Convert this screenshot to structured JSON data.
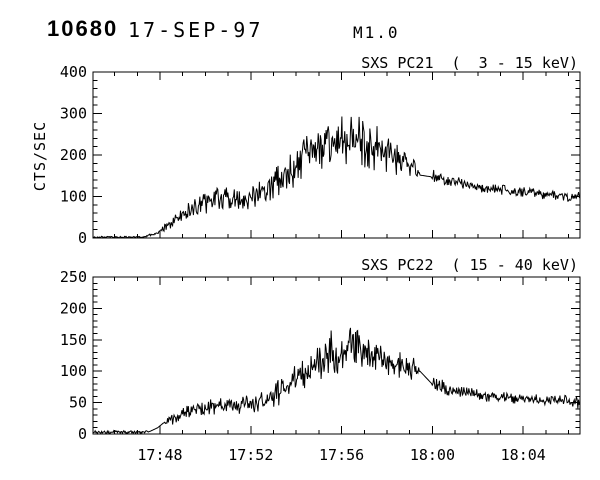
{
  "header": {
    "flare_number": "10680",
    "date": "17-SEP-97",
    "goes_class": "M1.0"
  },
  "colors": {
    "foreground": "#000000",
    "background": "#ffffff"
  },
  "chart_data": {
    "type": "line",
    "description": "Two stacked solar flare X-ray light curves (counts/sec vs time UT)",
    "x_axis": {
      "domain_minutes_after_1700": [
        45.05,
        66.5
      ],
      "minor_step": 1,
      "major_ticks": [
        {
          "t": 48,
          "label": "17:48"
        },
        {
          "t": 52,
          "label": "17:52"
        },
        {
          "t": 56,
          "label": "17:56"
        },
        {
          "t": 60,
          "label": "18:00"
        },
        {
          "t": 64,
          "label": "18:04"
        }
      ]
    },
    "panels": [
      {
        "id": "pc21",
        "title": "SXS PC21  (  3 - 15 keV)",
        "ylabel": "CTS/SEC",
        "ylim": [
          0,
          400
        ],
        "ytick_step": 100,
        "yminor_step": 20,
        "ytick_labels": [
          "0",
          "100",
          "200",
          "300",
          "400"
        ],
        "samples": 680,
        "seed": 3,
        "envelope": [
          [
            45.05,
            2
          ],
          [
            46.8,
            2
          ],
          [
            47.3,
            3
          ],
          [
            48.0,
            14
          ],
          [
            48.6,
            40
          ],
          [
            49.3,
            68
          ],
          [
            50.0,
            85
          ],
          [
            50.7,
            97
          ],
          [
            51.4,
            92
          ],
          [
            52.2,
            103
          ],
          [
            53.0,
            130
          ],
          [
            53.8,
            165
          ],
          [
            54.6,
            200
          ],
          [
            55.3,
            228
          ],
          [
            56.0,
            242
          ],
          [
            56.8,
            235
          ],
          [
            57.6,
            220
          ],
          [
            58.4,
            200
          ],
          [
            59.0,
            180
          ],
          [
            59.4,
            152
          ],
          [
            60.0,
            147
          ],
          [
            60.6,
            140
          ],
          [
            61.5,
            128
          ],
          [
            62.5,
            118
          ],
          [
            63.5,
            112
          ],
          [
            64.5,
            108
          ],
          [
            65.5,
            103
          ],
          [
            66.1,
            97
          ],
          [
            66.5,
            102
          ]
        ],
        "noise": [
          [
            45.05,
            1.5
          ],
          [
            47.0,
            1.5
          ],
          [
            47.6,
            2
          ],
          [
            48.2,
            8
          ],
          [
            49.0,
            14
          ],
          [
            50.0,
            18
          ],
          [
            51.0,
            18
          ],
          [
            52.0,
            20
          ],
          [
            53.0,
            26
          ],
          [
            54.0,
            32
          ],
          [
            55.0,
            40
          ],
          [
            56.0,
            45
          ],
          [
            57.0,
            42
          ],
          [
            58.0,
            38
          ],
          [
            59.0,
            30
          ],
          [
            59.35,
            25
          ],
          [
            59.45,
            0
          ],
          [
            59.95,
            0
          ],
          [
            60.05,
            14
          ],
          [
            60.6,
            12
          ],
          [
            61.5,
            9
          ],
          [
            66.5,
            8
          ]
        ]
      },
      {
        "id": "pc22",
        "title": "SXS PC22  ( 15 - 40 keV)",
        "ylabel": "",
        "ylim": [
          0,
          250
        ],
        "ytick_step": 50,
        "yminor_step": 10,
        "ytick_labels": [
          "0",
          "50",
          "100",
          "150",
          "200",
          "250"
        ],
        "samples": 680,
        "seed": 11,
        "envelope": [
          [
            45.05,
            3
          ],
          [
            47.0,
            2.5
          ],
          [
            47.55,
            4
          ],
          [
            47.9,
            10
          ],
          [
            48.2,
            19
          ],
          [
            49.0,
            32
          ],
          [
            49.8,
            42
          ],
          [
            50.5,
            47
          ],
          [
            51.3,
            44
          ],
          [
            52.0,
            48
          ],
          [
            53.0,
            60
          ],
          [
            54.0,
            88
          ],
          [
            55.0,
            115
          ],
          [
            55.7,
            133
          ],
          [
            56.4,
            138
          ],
          [
            57.1,
            128
          ],
          [
            57.9,
            118
          ],
          [
            58.7,
            110
          ],
          [
            59.4,
            102
          ],
          [
            60.0,
            79
          ],
          [
            60.7,
            72
          ],
          [
            61.7,
            64
          ],
          [
            62.7,
            59
          ],
          [
            63.7,
            56
          ],
          [
            64.7,
            54
          ],
          [
            65.7,
            55
          ],
          [
            66.5,
            49
          ]
        ],
        "noise": [
          [
            45.05,
            1.8
          ],
          [
            47.35,
            1.8
          ],
          [
            47.55,
            0
          ],
          [
            48.15,
            0
          ],
          [
            48.3,
            6
          ],
          [
            49.0,
            8
          ],
          [
            50.0,
            11
          ],
          [
            51.0,
            9
          ],
          [
            52.0,
            10
          ],
          [
            53.0,
            13
          ],
          [
            54.0,
            17
          ],
          [
            55.0,
            20
          ],
          [
            55.8,
            26
          ],
          [
            56.5,
            22
          ],
          [
            57.2,
            20
          ],
          [
            58.0,
            17
          ],
          [
            59.0,
            14
          ],
          [
            59.35,
            12
          ],
          [
            59.45,
            0
          ],
          [
            59.95,
            0
          ],
          [
            60.05,
            9
          ],
          [
            60.7,
            7
          ],
          [
            61.5,
            6
          ],
          [
            66.5,
            6
          ]
        ]
      }
    ]
  }
}
